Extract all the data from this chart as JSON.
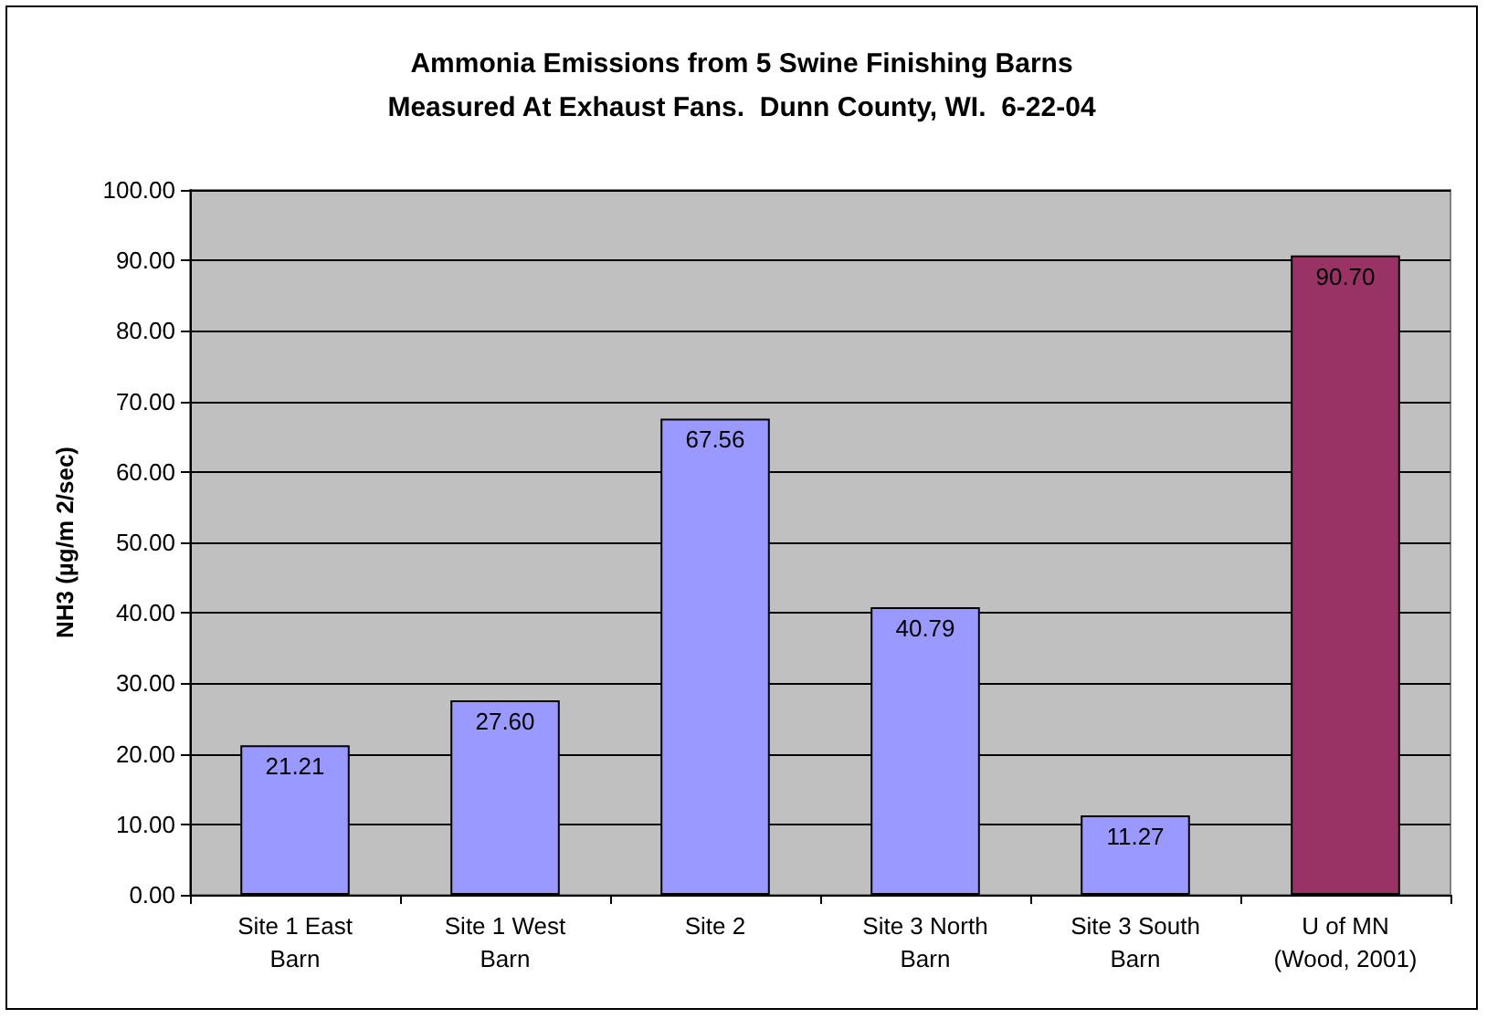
{
  "chart_data": {
    "type": "bar",
    "title": "Ammonia Emissions from 5 Swine Finishing Barns\nMeasured At Exhaust Fans.  Dunn County, WI.  6-22-04",
    "ylabel": "NH3 (µg/m 2/sec)",
    "categories": [
      "Site 1 East\nBarn",
      "Site 1 West\nBarn",
      "Site 2",
      "Site 3 North\nBarn",
      "Site 3 South\nBarn",
      "U of MN\n(Wood, 2001)"
    ],
    "values": [
      21.21,
      27.6,
      67.56,
      40.79,
      11.27,
      90.7
    ],
    "colors": [
      "#9999ff",
      "#9999ff",
      "#9999ff",
      "#9999ff",
      "#9999ff",
      "#993366"
    ],
    "value_labels": [
      "21.21",
      "27.60",
      "67.56",
      "40.79",
      "11.27",
      "90.70"
    ],
    "ylim": [
      0,
      100
    ],
    "yticks": [
      {
        "value": 0,
        "label": "0.00"
      },
      {
        "value": 10,
        "label": "10.00"
      },
      {
        "value": 20,
        "label": "20.00"
      },
      {
        "value": 30,
        "label": "30.00"
      },
      {
        "value": 40,
        "label": "40.00"
      },
      {
        "value": 50,
        "label": "50.00"
      },
      {
        "value": 60,
        "label": "60.00"
      },
      {
        "value": 70,
        "label": "70.00"
      },
      {
        "value": 80,
        "label": "80.00"
      },
      {
        "value": 90,
        "label": "90.00"
      },
      {
        "value": 100,
        "label": "100.00"
      }
    ],
    "grid": "y"
  }
}
